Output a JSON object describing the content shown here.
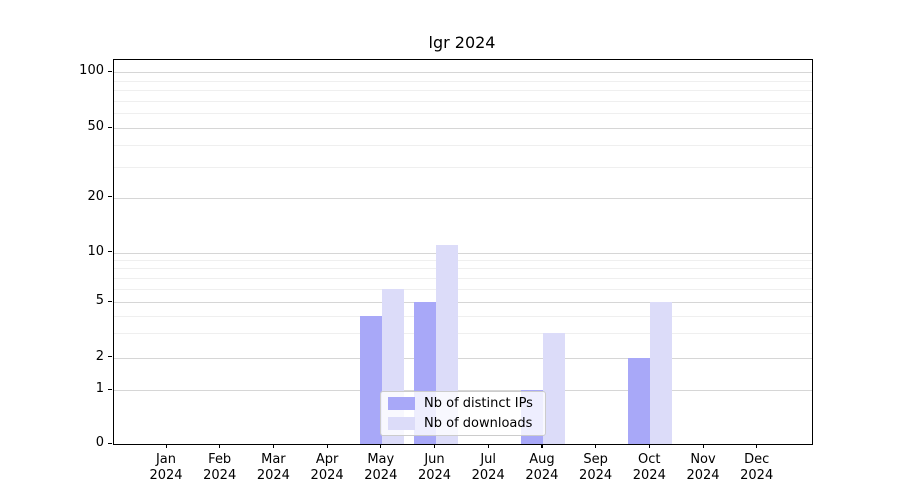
{
  "figure_title": "lgr 2024",
  "chart_data": {
    "type": "bar",
    "title": "lgr 2024",
    "categories": [
      "Jan",
      "Feb",
      "Mar",
      "Apr",
      "May",
      "Jun",
      "Jul",
      "Aug",
      "Sep",
      "Oct",
      "Nov",
      "Dec"
    ],
    "x_tick_year": "2024",
    "series": [
      {
        "name": "Nb of distinct IPs",
        "color": "#a8a8f8",
        "values": [
          0,
          0,
          0,
          0,
          4,
          5,
          0,
          1,
          0,
          2,
          0,
          0
        ]
      },
      {
        "name": "Nb of downloads",
        "color": "#dcdcf9",
        "values": [
          0,
          0,
          0,
          0,
          6,
          11,
          0,
          3,
          0,
          5,
          0,
          0
        ]
      }
    ],
    "yticks": [
      0,
      1,
      2,
      5,
      10,
      20,
      50,
      100
    ],
    "minor_grid_values": [
      3,
      4,
      6,
      7,
      8,
      9,
      30,
      40,
      60,
      70,
      80,
      90
    ],
    "ylim": [
      0,
      100
    ],
    "scale": "log-like (0 baseline)",
    "xlabel": "",
    "ylabel": "",
    "grid": true,
    "legend_position": "lower-center-inside"
  }
}
